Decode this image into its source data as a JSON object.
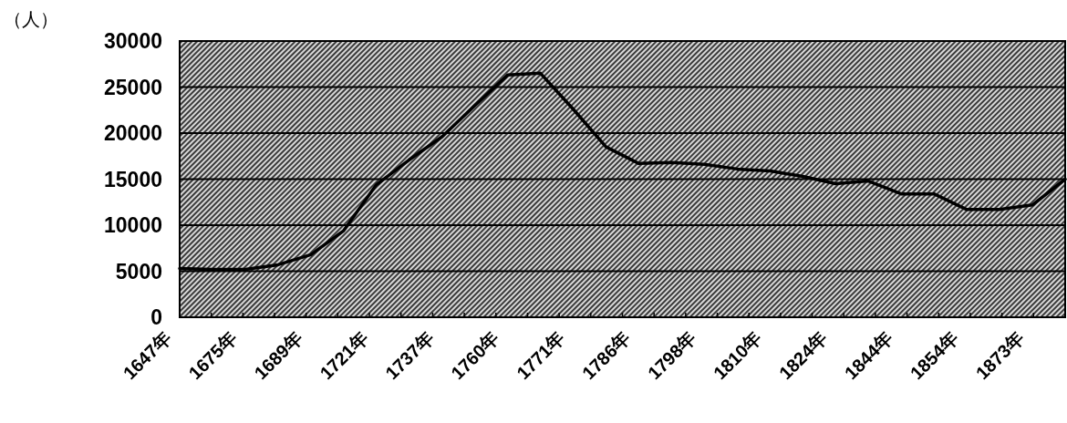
{
  "chart_data": {
    "type": "line",
    "ylabel": "（人）",
    "categories": [
      "1647年",
      null,
      "1675年",
      null,
      "1689年",
      null,
      "1721年",
      null,
      "1737年",
      null,
      "1760年",
      null,
      "1771年",
      null,
      "1786年",
      null,
      "1798年",
      null,
      "1810年",
      null,
      "1824年",
      null,
      "1844年",
      null,
      "1854年",
      null,
      "1873年",
      null
    ],
    "values": [
      5300,
      5200,
      5200,
      5700,
      6800,
      9400,
      14400,
      17100,
      19600,
      23000,
      26300,
      26500,
      22600,
      18500,
      16700,
      16800,
      16600,
      16100,
      15900,
      15300,
      14500,
      14800,
      13400,
      13400,
      11700,
      11700,
      12200,
      15000
    ],
    "color": "#000000",
    "ylim": [
      0,
      30000
    ],
    "yticks": [
      0,
      5000,
      10000,
      15000,
      20000,
      25000,
      30000
    ],
    "grid": "y"
  }
}
